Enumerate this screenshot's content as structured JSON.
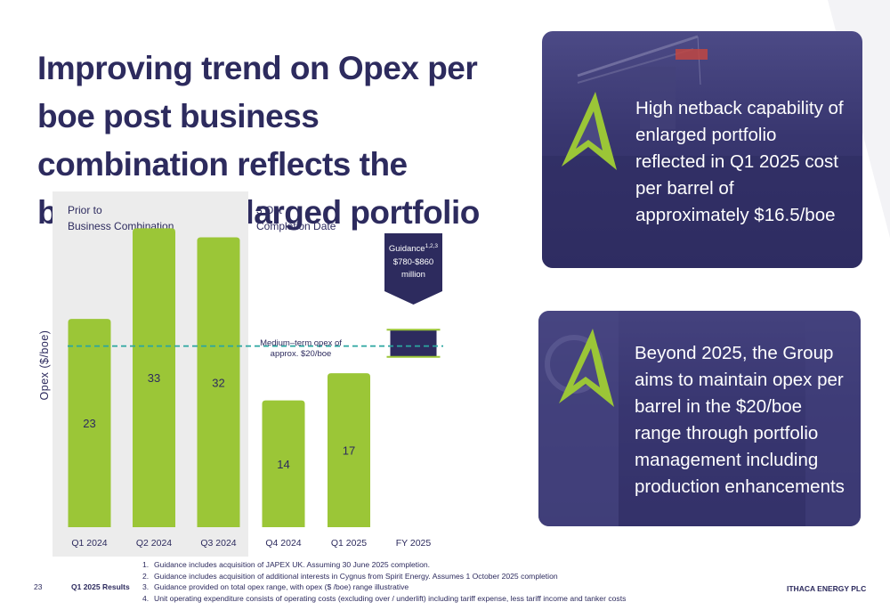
{
  "title": "Improving trend on Opex per boe post business combination reflects the benefits of enlarged portfolio",
  "chart_data": {
    "type": "bar",
    "categories": [
      "Q1 2024",
      "Q2 2024",
      "Q3 2024",
      "Q4 2024",
      "Q1 2025",
      "FY 2025"
    ],
    "values": [
      23,
      33,
      32,
      14,
      17,
      null
    ],
    "value_labels": [
      "23",
      "33",
      "32",
      "14",
      "17",
      ""
    ],
    "ylabel": "Opex ($/boe)",
    "xlabel": "",
    "ylim": [
      0,
      36
    ],
    "grid": false,
    "bar_color": "#9bc637",
    "reference_line": {
      "value": 20,
      "label_line1": "Medium–term opex of",
      "label_line2": "approx. $20/boe",
      "color": "#2aa6a0"
    },
    "guidance_range": {
      "category": "FY 2025",
      "low": 18.8,
      "high": 21.8
    },
    "annotations": {
      "prior_line1": "Prior to",
      "prior_line2": "Business Combination",
      "completion_line1": "3 Oct",
      "completion_line2": "Completion Date",
      "guidance_word": "Guidance",
      "guidance_sup": "1,2,3",
      "guidance_line2": "$780-$860",
      "guidance_line3": "million"
    },
    "colors": {
      "shaded_region": "#ececec",
      "guidance_box": "#2d2b5e",
      "text": "#2d2b5e"
    }
  },
  "cards": [
    {
      "text": "High netback capability of enlarged portfolio reflected in Q1 2025 cost per barrel of approximately $16.5/boe"
    },
    {
      "text": "Beyond 2025, the Group aims to maintain opex per barrel in the $20/boe range through portfolio management including production enhancements"
    }
  ],
  "footnotes": [
    {
      "num": "1.",
      "text": "Guidance includes acquisition of JAPEX UK. Assuming 30 June 2025 completion."
    },
    {
      "num": "2.",
      "text": "Guidance includes acquisition of additional interests in Cygnus from Spirit Energy. Assumes 1 October 2025 completion"
    },
    {
      "num": "3.",
      "text": "Guidance provided on total opex range, with opex ($ /boe) range illustrative"
    },
    {
      "num": "4.",
      "text": "Unit operating expenditure consists of operating costs (excluding over / underlift) including tariff expense, less tariff income and tanker costs"
    }
  ],
  "footer": {
    "page_number": "23",
    "report": "Q1 2025 Results",
    "company": "ITHACA ENERGY PLC"
  },
  "brand": {
    "navy": "#2d2b5e",
    "green": "#9bc637",
    "teal": "#2aa6a0"
  }
}
